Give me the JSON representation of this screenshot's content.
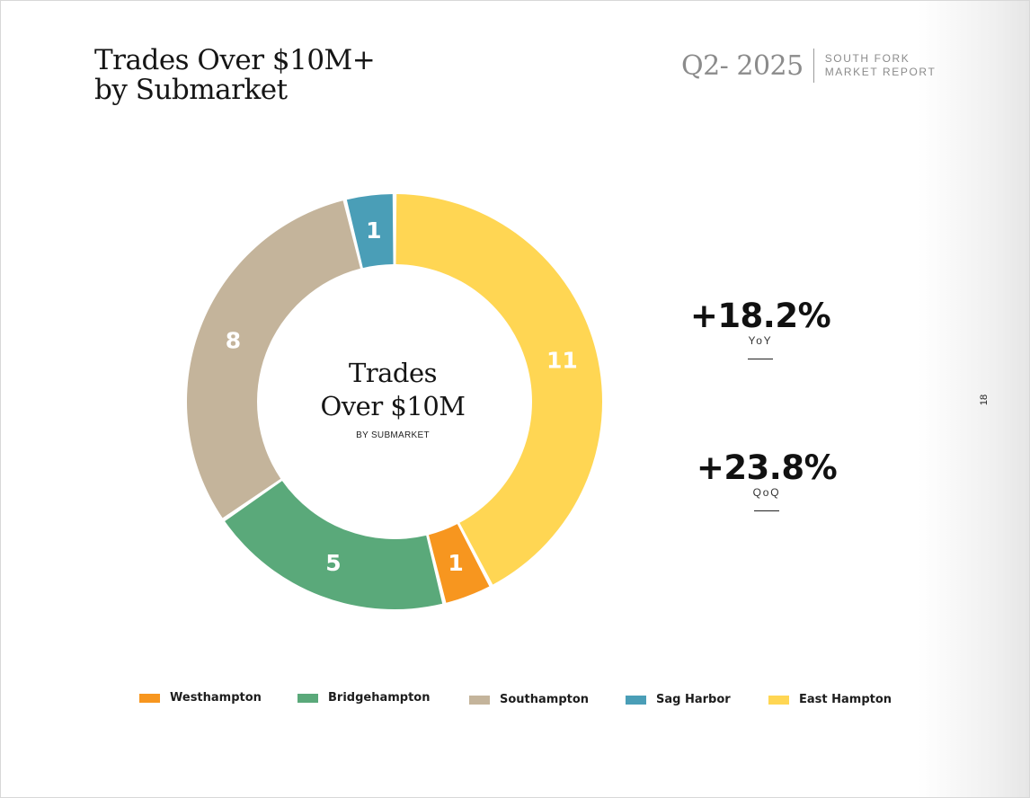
{
  "header": {
    "title_line1": "Trades Over $10M+",
    "title_line2": "by Submarket",
    "quarter": "Q2- 2025",
    "report_line1": "SOUTH FORK",
    "report_line2": "MARKET REPORT"
  },
  "center": {
    "title_line1": "Trades",
    "title_line2": "Over $10M",
    "subtitle": "BY SUBMARKET"
  },
  "stats": {
    "yoy": {
      "value": "+18.2%",
      "label": "YoY"
    },
    "qoq": {
      "value": "+23.8%",
      "label": "QoQ"
    }
  },
  "page_number": "18",
  "chart_data": {
    "type": "pie",
    "title": "Trades Over $10M+ by Submarket",
    "legend_position": "bottom",
    "series": [
      {
        "name": "East Hampton",
        "value": 11,
        "color": "#FFD653"
      },
      {
        "name": "Westhampton",
        "value": 1,
        "color": "#F7961F"
      },
      {
        "name": "Bridgehampton",
        "value": 5,
        "color": "#5AA97A"
      },
      {
        "name": "Southampton",
        "value": 8,
        "color": "#C4B49B"
      },
      {
        "name": "Sag Harbor",
        "value": 1,
        "color": "#4A9EB7"
      }
    ],
    "legend_order": [
      "Westhampton",
      "Bridgehampton",
      "Southampton",
      "Sag Harbor",
      "East Hampton"
    ]
  }
}
